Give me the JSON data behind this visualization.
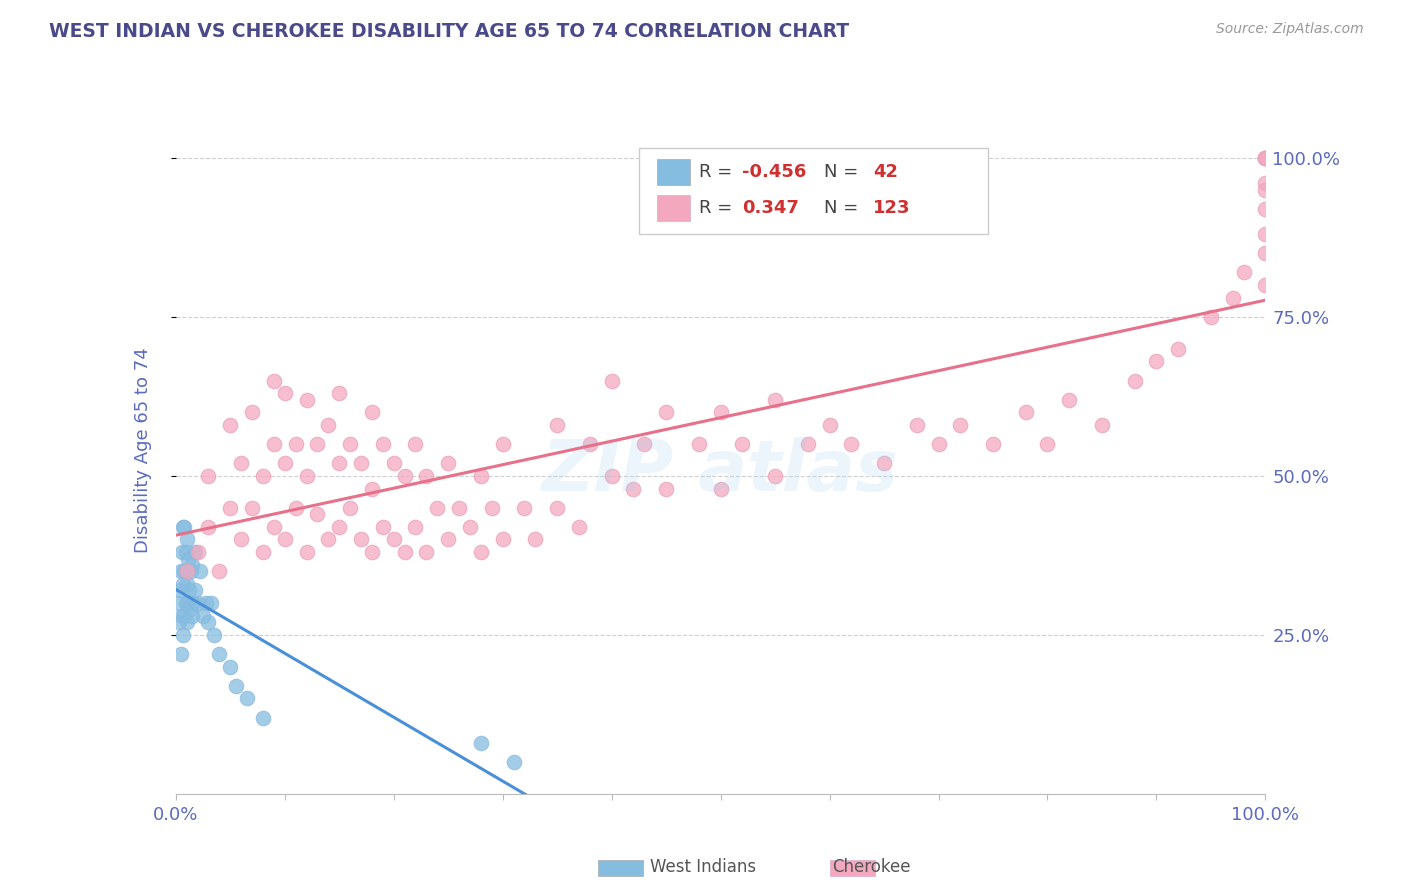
{
  "title": "WEST INDIAN VS CHEROKEE DISABILITY AGE 65 TO 74 CORRELATION CHART",
  "source": "Source: ZipAtlas.com",
  "ylabel": "Disability Age 65 to 74",
  "xlim": [
    0,
    1.0
  ],
  "ylim": [
    0,
    1.08
  ],
  "ytick_labels": [
    "25.0%",
    "50.0%",
    "75.0%",
    "100.0%"
  ],
  "ytick_positions": [
    0.25,
    0.5,
    0.75,
    1.0
  ],
  "color_blue": "#85bde0",
  "color_pink": "#f4a8c0",
  "color_blue_line": "#4a90d9",
  "color_pink_line": "#e8708a",
  "color_title": "#4a4a8a",
  "color_source": "#999999",
  "color_axis_label": "#5b6bbf",
  "color_grid": "#d0d0d0",
  "west_indian_x": [
    0.002,
    0.003,
    0.004,
    0.005,
    0.005,
    0.006,
    0.006,
    0.007,
    0.007,
    0.007,
    0.008,
    0.008,
    0.008,
    0.009,
    0.009,
    0.01,
    0.01,
    0.01,
    0.011,
    0.011,
    0.012,
    0.013,
    0.014,
    0.015,
    0.015,
    0.016,
    0.018,
    0.018,
    0.02,
    0.022,
    0.025,
    0.028,
    0.03,
    0.032,
    0.035,
    0.04,
    0.05,
    0.055,
    0.065,
    0.08,
    0.28,
    0.31
  ],
  "west_indian_y": [
    0.3,
    0.27,
    0.32,
    0.22,
    0.35,
    0.28,
    0.38,
    0.25,
    0.33,
    0.42,
    0.28,
    0.35,
    0.42,
    0.3,
    0.38,
    0.27,
    0.33,
    0.4,
    0.3,
    0.37,
    0.32,
    0.29,
    0.35,
    0.28,
    0.36,
    0.3,
    0.32,
    0.38,
    0.3,
    0.35,
    0.28,
    0.3,
    0.27,
    0.3,
    0.25,
    0.22,
    0.2,
    0.17,
    0.15,
    0.12,
    0.08,
    0.05
  ],
  "cherokee_x": [
    0.01,
    0.02,
    0.03,
    0.03,
    0.04,
    0.05,
    0.05,
    0.06,
    0.06,
    0.07,
    0.07,
    0.08,
    0.08,
    0.09,
    0.09,
    0.09,
    0.1,
    0.1,
    0.1,
    0.11,
    0.11,
    0.12,
    0.12,
    0.12,
    0.13,
    0.13,
    0.14,
    0.14,
    0.15,
    0.15,
    0.15,
    0.16,
    0.16,
    0.17,
    0.17,
    0.18,
    0.18,
    0.18,
    0.19,
    0.19,
    0.2,
    0.2,
    0.21,
    0.21,
    0.22,
    0.22,
    0.23,
    0.23,
    0.24,
    0.25,
    0.25,
    0.26,
    0.27,
    0.28,
    0.28,
    0.29,
    0.3,
    0.3,
    0.32,
    0.33,
    0.35,
    0.35,
    0.37,
    0.38,
    0.4,
    0.4,
    0.42,
    0.43,
    0.45,
    0.45,
    0.48,
    0.5,
    0.5,
    0.52,
    0.55,
    0.55,
    0.58,
    0.6,
    0.62,
    0.65,
    0.68,
    0.7,
    0.72,
    0.75,
    0.78,
    0.8,
    0.82,
    0.85,
    0.88,
    0.9,
    0.92,
    0.95,
    0.97,
    0.98,
    1.0,
    1.0,
    1.0,
    1.0,
    1.0,
    1.0,
    1.0,
    1.0,
    1.0
  ],
  "cherokee_y": [
    0.35,
    0.38,
    0.42,
    0.5,
    0.35,
    0.45,
    0.58,
    0.4,
    0.52,
    0.45,
    0.6,
    0.38,
    0.5,
    0.42,
    0.55,
    0.65,
    0.4,
    0.52,
    0.63,
    0.45,
    0.55,
    0.38,
    0.5,
    0.62,
    0.44,
    0.55,
    0.4,
    0.58,
    0.42,
    0.52,
    0.63,
    0.45,
    0.55,
    0.4,
    0.52,
    0.38,
    0.48,
    0.6,
    0.42,
    0.55,
    0.4,
    0.52,
    0.38,
    0.5,
    0.42,
    0.55,
    0.38,
    0.5,
    0.45,
    0.4,
    0.52,
    0.45,
    0.42,
    0.38,
    0.5,
    0.45,
    0.4,
    0.55,
    0.45,
    0.4,
    0.45,
    0.58,
    0.42,
    0.55,
    0.5,
    0.65,
    0.48,
    0.55,
    0.48,
    0.6,
    0.55,
    0.48,
    0.6,
    0.55,
    0.5,
    0.62,
    0.55,
    0.58,
    0.55,
    0.52,
    0.58,
    0.55,
    0.58,
    0.55,
    0.6,
    0.55,
    0.62,
    0.58,
    0.65,
    0.68,
    0.7,
    0.75,
    0.78,
    0.82,
    0.8,
    0.88,
    0.92,
    0.96,
    1.0,
    0.85,
    0.95,
    1.0,
    1.0
  ]
}
